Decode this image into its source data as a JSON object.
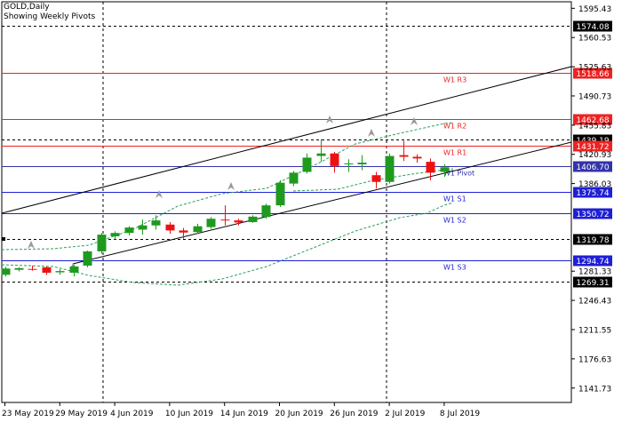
{
  "header": {
    "symbol": "GOLD,Daily",
    "subtitle": "Showing Weekly Pivots"
  },
  "price_axis": {
    "ticks": [
      "1595.43",
      "1560.53",
      "1525.63",
      "1490.73",
      "1455.83",
      "1420.93",
      "1386.03",
      "1281.33",
      "1246.43",
      "1211.55",
      "1176.63",
      "1141.73"
    ]
  },
  "time_axis": {
    "labels": [
      "23 May 2019",
      "29 May 2019",
      "4 Jun 2019",
      "10 Jun 2019",
      "14 Jun 2019",
      "20 Jun 2019",
      "26 Jun 2019",
      "2 Jul 2019",
      "8 Jul 2019"
    ]
  },
  "pivot_levels": [
    {
      "label": "W1 R3",
      "price": 1518.66,
      "tag": "1518.66",
      "color": "#ee2222"
    },
    {
      "label": "W1 R2",
      "price": 1462.68,
      "tag": "1462.68",
      "color": "#ee2222"
    },
    {
      "label": "W1 R1",
      "price": 1431.72,
      "tag": "1431.72",
      "color": "#ee2222"
    },
    {
      "label": "W1 Pivot",
      "price": 1406.7,
      "tag": "1406.70",
      "color": "#3333aa"
    },
    {
      "label": "W1 S1",
      "price": 1375.74,
      "tag": "1375.74",
      "color": "#1f1fd6"
    },
    {
      "label": "W1 S2",
      "price": 1350.72,
      "tag": "1350.72",
      "color": "#1f1fd6"
    },
    {
      "label": "W1 S3",
      "price": 1294.74,
      "tag": "1294.74",
      "color": "#1f1fd6"
    }
  ],
  "dashed_levels": [
    {
      "price": 1574.08,
      "tag": "1574.08"
    },
    {
      "price": 1439.19,
      "tag": "1439.19"
    },
    {
      "price": 1319.78,
      "tag": "1319.78"
    },
    {
      "price": 1269.31,
      "tag": "1269.31"
    }
  ],
  "colors": {
    "bull": "#1f9a1f",
    "bear": "#ee1111",
    "resistance": "#ee2222",
    "support": "#1f1fd6",
    "pivot": "#3333aa",
    "envelope": "#2e9e5b",
    "fractal": "#999999"
  },
  "chart_data": {
    "type": "candlestick",
    "title": "GOLD,Daily",
    "subtitle": "Showing Weekly Pivots",
    "ylim": [
      1124.5,
      1603.2
    ],
    "candles": [
      {
        "d": "23 May 2019",
        "o": 1277.0,
        "h": 1286.5,
        "l": 1275.0,
        "c": 1284.5
      },
      {
        "d": "24 May 2019",
        "o": 1283.0,
        "h": 1286.0,
        "l": 1281.0,
        "c": 1285.0
      },
      {
        "d": "27 May 2019",
        "o": 1284.0,
        "h": 1288.0,
        "l": 1282.0,
        "c": 1283.5
      },
      {
        "d": "28 May 2019",
        "o": 1286.0,
        "h": 1287.0,
        "l": 1277.0,
        "c": 1279.5
      },
      {
        "d": "29 May 2019",
        "o": 1280.0,
        "h": 1284.0,
        "l": 1277.0,
        "c": 1281.5
      },
      {
        "d": "30 May 2019",
        "o": 1279.5,
        "h": 1289.0,
        "l": 1275.0,
        "c": 1287.0
      },
      {
        "d": "31 May 2019",
        "o": 1288.0,
        "h": 1306.0,
        "l": 1286.0,
        "c": 1305.0
      },
      {
        "d": "3 Jun 2019",
        "o": 1305.0,
        "h": 1327.0,
        "l": 1302.0,
        "c": 1325.0
      },
      {
        "d": "4 Jun 2019",
        "o": 1323.0,
        "h": 1329.0,
        "l": 1319.0,
        "c": 1327.0
      },
      {
        "d": "5 Jun 2019",
        "o": 1327.0,
        "h": 1335.0,
        "l": 1324.0,
        "c": 1333.5
      },
      {
        "d": "6 Jun 2019",
        "o": 1331.0,
        "h": 1343.0,
        "l": 1325.0,
        "c": 1336.0
      },
      {
        "d": "7 Jun 2019",
        "o": 1336.0,
        "h": 1348.0,
        "l": 1331.0,
        "c": 1342.0
      },
      {
        "d": "10 Jun 2019",
        "o": 1337.0,
        "h": 1340.0,
        "l": 1326.0,
        "c": 1330.0
      },
      {
        "d": "11 Jun 2019",
        "o": 1330.0,
        "h": 1333.0,
        "l": 1320.0,
        "c": 1327.5
      },
      {
        "d": "12 Jun 2019",
        "o": 1328.0,
        "h": 1338.0,
        "l": 1326.0,
        "c": 1335.0
      },
      {
        "d": "13 Jun 2019",
        "o": 1334.0,
        "h": 1346.0,
        "l": 1332.0,
        "c": 1344.0
      },
      {
        "d": "14 Jun 2019",
        "o": 1343.0,
        "h": 1360.0,
        "l": 1336.0,
        "c": 1342.0
      },
      {
        "d": "17 Jun 2019",
        "o": 1342.0,
        "h": 1344.0,
        "l": 1336.0,
        "c": 1339.5
      },
      {
        "d": "18 Jun 2019",
        "o": 1340.0,
        "h": 1348.0,
        "l": 1339.0,
        "c": 1346.5
      },
      {
        "d": "19 Jun 2019",
        "o": 1346.0,
        "h": 1362.0,
        "l": 1344.0,
        "c": 1360.0
      },
      {
        "d": "20 Jun 2019",
        "o": 1360.0,
        "h": 1390.0,
        "l": 1358.0,
        "c": 1387.0
      },
      {
        "d": "21 Jun 2019",
        "o": 1386.0,
        "h": 1401.0,
        "l": 1383.0,
        "c": 1399.0
      },
      {
        "d": "24 Jun 2019",
        "o": 1400.0,
        "h": 1422.0,
        "l": 1398.0,
        "c": 1417.0
      },
      {
        "d": "25 Jun 2019",
        "o": 1419.0,
        "h": 1439.0,
        "l": 1412.0,
        "c": 1422.0
      },
      {
        "d": "26 Jun 2019",
        "o": 1422.0,
        "h": 1424.0,
        "l": 1399.0,
        "c": 1407.0
      },
      {
        "d": "27 Jun 2019",
        "o": 1409.0,
        "h": 1415.0,
        "l": 1400.0,
        "c": 1410.0
      },
      {
        "d": "28 Jun 2019",
        "o": 1409.0,
        "h": 1420.0,
        "l": 1402.0,
        "c": 1411.0
      },
      {
        "d": "1 Jul 2019",
        "o": 1396.0,
        "h": 1400.0,
        "l": 1380.0,
        "c": 1388.0
      },
      {
        "d": "2 Jul 2019",
        "o": 1388.0,
        "h": 1422.0,
        "l": 1386.0,
        "c": 1419.0
      },
      {
        "d": "3 Jul 2019",
        "o": 1420.0,
        "h": 1437.0,
        "l": 1413.0,
        "c": 1418.0
      },
      {
        "d": "4 Jul 2019",
        "o": 1418.0,
        "h": 1421.0,
        "l": 1411.0,
        "c": 1416.0
      },
      {
        "d": "5 Jul 2019",
        "o": 1412.0,
        "h": 1416.0,
        "l": 1390.0,
        "c": 1399.0
      },
      {
        "d": "8 Jul 2019",
        "o": 1400.0,
        "h": 1409.0,
        "l": 1394.0,
        "c": 1405.5
      }
    ]
  }
}
